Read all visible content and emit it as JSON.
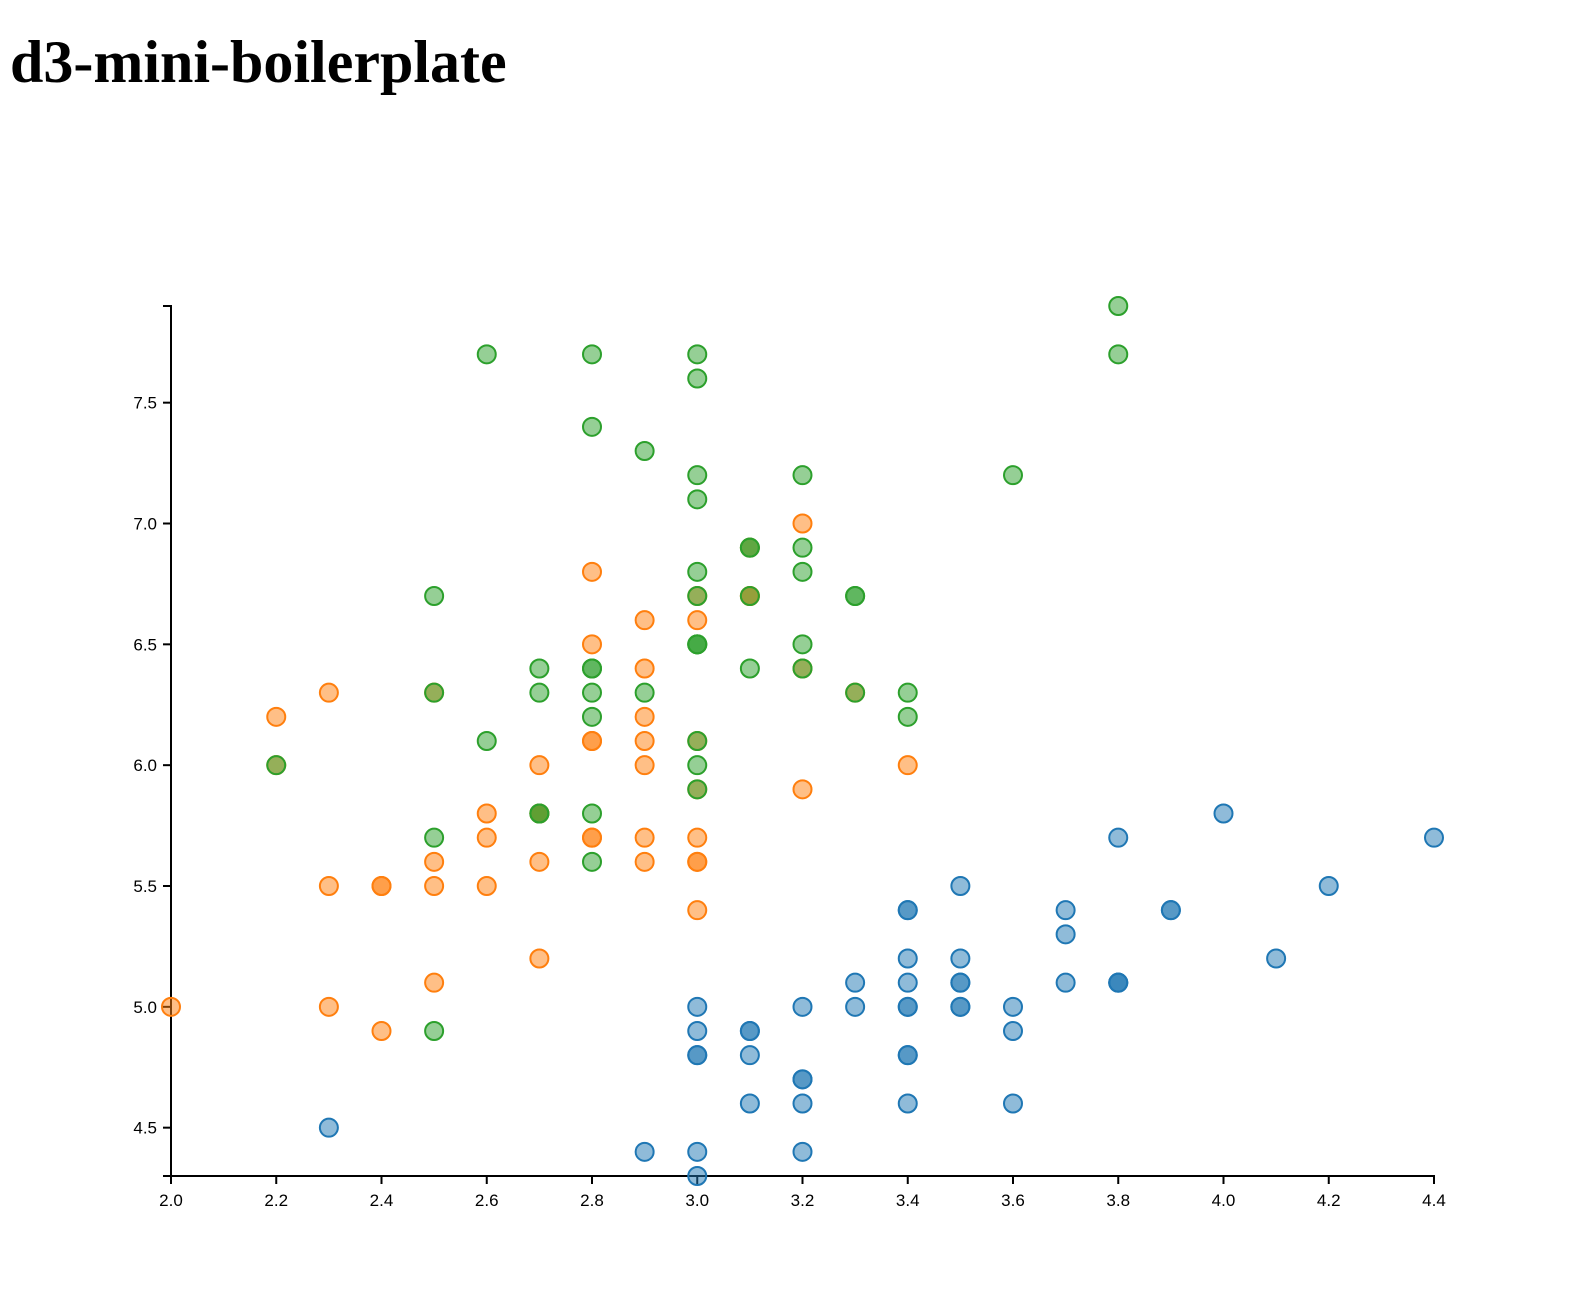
{
  "page": {
    "title": "d3-mini-boilerplate"
  },
  "chart_data": {
    "type": "scatter",
    "title": "",
    "xlabel": "",
    "ylabel": "",
    "xlim": [
      2.0,
      4.4
    ],
    "ylim": [
      4.3,
      7.9
    ],
    "x_ticks": [
      "2.0",
      "2.2",
      "2.4",
      "2.6",
      "2.8",
      "3.0",
      "3.2",
      "3.4",
      "3.6",
      "3.8",
      "4.0",
      "4.2",
      "4.4"
    ],
    "y_ticks": [
      "4.5",
      "5.0",
      "5.5",
      "6.0",
      "6.5",
      "7.0",
      "7.5"
    ],
    "grid": false,
    "legend": "none",
    "point_opacity": 0.5,
    "series": [
      {
        "color": "#1f77b4",
        "points": [
          [
            3.5,
            5.1
          ],
          [
            3.0,
            4.9
          ],
          [
            3.2,
            4.7
          ],
          [
            3.1,
            4.6
          ],
          [
            3.6,
            5.0
          ],
          [
            3.9,
            5.4
          ],
          [
            3.4,
            4.6
          ],
          [
            3.4,
            5.0
          ],
          [
            2.9,
            4.4
          ],
          [
            3.1,
            4.9
          ],
          [
            3.7,
            5.4
          ],
          [
            3.4,
            4.8
          ],
          [
            3.0,
            4.8
          ],
          [
            3.0,
            4.3
          ],
          [
            4.0,
            5.8
          ],
          [
            4.4,
            5.7
          ],
          [
            3.9,
            5.4
          ],
          [
            3.5,
            5.1
          ],
          [
            3.8,
            5.7
          ],
          [
            3.8,
            5.1
          ],
          [
            3.4,
            5.4
          ],
          [
            3.7,
            5.1
          ],
          [
            3.6,
            4.6
          ],
          [
            3.3,
            5.1
          ],
          [
            3.4,
            4.8
          ],
          [
            3.0,
            5.0
          ],
          [
            3.4,
            5.0
          ],
          [
            3.5,
            5.2
          ],
          [
            3.4,
            5.2
          ],
          [
            3.2,
            4.7
          ],
          [
            3.1,
            4.8
          ],
          [
            3.4,
            5.4
          ],
          [
            4.1,
            5.2
          ],
          [
            4.2,
            5.5
          ],
          [
            3.1,
            4.9
          ],
          [
            3.2,
            5.0
          ],
          [
            3.5,
            5.5
          ],
          [
            3.6,
            4.9
          ],
          [
            3.0,
            4.4
          ],
          [
            3.4,
            5.1
          ],
          [
            3.5,
            5.0
          ],
          [
            2.3,
            4.5
          ],
          [
            3.2,
            4.4
          ],
          [
            3.5,
            5.0
          ],
          [
            3.8,
            5.1
          ],
          [
            3.0,
            4.8
          ],
          [
            3.8,
            5.1
          ],
          [
            3.2,
            4.6
          ],
          [
            3.7,
            5.3
          ],
          [
            3.3,
            5.0
          ]
        ]
      },
      {
        "color": "#ff7f0e",
        "points": [
          [
            3.2,
            7.0
          ],
          [
            3.2,
            6.4
          ],
          [
            3.1,
            6.9
          ],
          [
            2.3,
            5.5
          ],
          [
            2.8,
            6.5
          ],
          [
            2.8,
            5.7
          ],
          [
            3.3,
            6.3
          ],
          [
            2.4,
            4.9
          ],
          [
            2.9,
            6.6
          ],
          [
            2.7,
            5.2
          ],
          [
            2.0,
            5.0
          ],
          [
            3.0,
            5.9
          ],
          [
            2.2,
            6.0
          ],
          [
            2.9,
            6.1
          ],
          [
            2.9,
            5.6
          ],
          [
            3.1,
            6.7
          ],
          [
            3.0,
            5.6
          ],
          [
            2.7,
            5.8
          ],
          [
            2.2,
            6.2
          ],
          [
            2.5,
            5.6
          ],
          [
            3.2,
            5.9
          ],
          [
            2.8,
            6.1
          ],
          [
            2.5,
            6.3
          ],
          [
            2.8,
            6.1
          ],
          [
            2.9,
            6.4
          ],
          [
            3.0,
            6.6
          ],
          [
            2.8,
            6.8
          ],
          [
            3.0,
            6.7
          ],
          [
            2.9,
            6.0
          ],
          [
            2.6,
            5.7
          ],
          [
            2.4,
            5.5
          ],
          [
            2.4,
            5.5
          ],
          [
            2.7,
            5.8
          ],
          [
            2.7,
            6.0
          ],
          [
            3.0,
            5.4
          ],
          [
            3.4,
            6.0
          ],
          [
            3.1,
            6.7
          ],
          [
            2.3,
            6.3
          ],
          [
            3.0,
            5.6
          ],
          [
            2.5,
            5.5
          ],
          [
            2.6,
            5.5
          ],
          [
            3.0,
            6.1
          ],
          [
            2.6,
            5.8
          ],
          [
            2.3,
            5.0
          ],
          [
            2.7,
            5.6
          ],
          [
            3.0,
            5.7
          ],
          [
            2.9,
            5.7
          ],
          [
            2.9,
            6.2
          ],
          [
            2.5,
            5.1
          ],
          [
            2.8,
            5.7
          ]
        ]
      },
      {
        "color": "#2ca02c",
        "points": [
          [
            3.3,
            6.3
          ],
          [
            2.7,
            5.8
          ],
          [
            3.0,
            7.1
          ],
          [
            2.9,
            6.3
          ],
          [
            3.0,
            6.5
          ],
          [
            3.0,
            7.6
          ],
          [
            2.5,
            4.9
          ],
          [
            2.9,
            7.3
          ],
          [
            2.5,
            6.7
          ],
          [
            3.6,
            7.2
          ],
          [
            3.2,
            6.5
          ],
          [
            2.7,
            6.4
          ],
          [
            3.0,
            6.8
          ],
          [
            2.5,
            5.7
          ],
          [
            2.8,
            5.8
          ],
          [
            3.2,
            6.4
          ],
          [
            3.0,
            6.5
          ],
          [
            3.8,
            7.7
          ],
          [
            2.6,
            7.7
          ],
          [
            2.2,
            6.0
          ],
          [
            3.2,
            6.9
          ],
          [
            2.8,
            5.6
          ],
          [
            2.8,
            7.7
          ],
          [
            2.7,
            6.3
          ],
          [
            3.3,
            6.7
          ],
          [
            3.2,
            7.2
          ],
          [
            2.8,
            6.2
          ],
          [
            3.0,
            6.1
          ],
          [
            2.8,
            6.4
          ],
          [
            3.0,
            7.2
          ],
          [
            2.8,
            7.4
          ],
          [
            3.8,
            7.9
          ],
          [
            2.8,
            6.4
          ],
          [
            2.8,
            6.3
          ],
          [
            2.6,
            6.1
          ],
          [
            3.0,
            7.7
          ],
          [
            3.4,
            6.3
          ],
          [
            3.1,
            6.4
          ],
          [
            3.0,
            6.0
          ],
          [
            3.1,
            6.9
          ],
          [
            3.1,
            6.7
          ],
          [
            3.1,
            6.9
          ],
          [
            2.7,
            5.8
          ],
          [
            3.2,
            6.8
          ],
          [
            3.3,
            6.7
          ],
          [
            3.0,
            6.7
          ],
          [
            2.5,
            6.3
          ],
          [
            3.0,
            6.5
          ],
          [
            3.4,
            6.2
          ],
          [
            3.0,
            5.9
          ]
        ]
      }
    ]
  }
}
